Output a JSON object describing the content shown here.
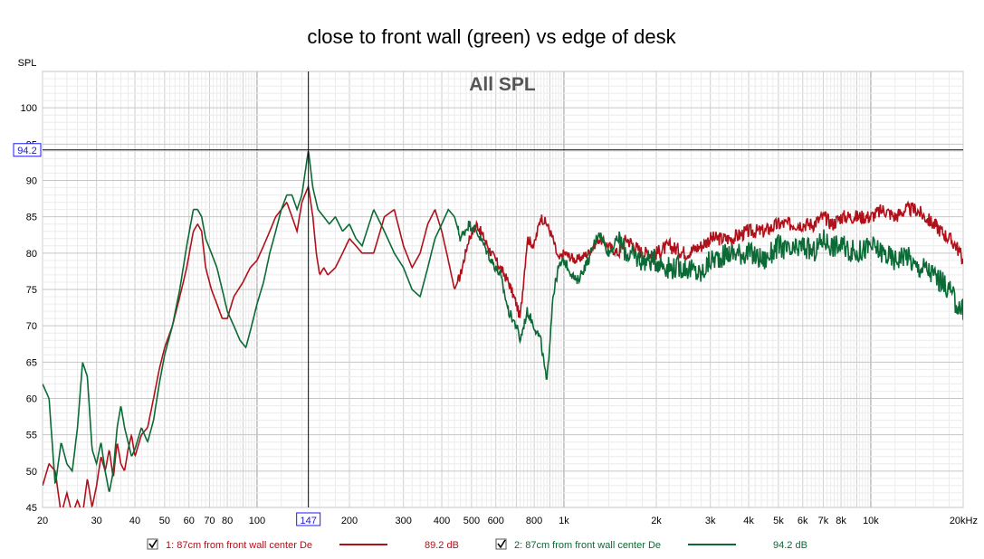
{
  "chart_data": {
    "type": "line",
    "title": "close to front wall (green) vs edge of desk",
    "inner_label": "All SPL",
    "ylabel": "SPL",
    "xscale": "log",
    "xlim": [
      20,
      20000
    ],
    "ylim": [
      45,
      105
    ],
    "grid": true,
    "xticks": [
      {
        "v": 20,
        "label": "20"
      },
      {
        "v": 30,
        "label": "30"
      },
      {
        "v": 40,
        "label": "40"
      },
      {
        "v": 50,
        "label": "50"
      },
      {
        "v": 60,
        "label": "60"
      },
      {
        "v": 70,
        "label": "70"
      },
      {
        "v": 80,
        "label": "80"
      },
      {
        "v": 100,
        "label": "100"
      },
      {
        "v": 200,
        "label": "200"
      },
      {
        "v": 300,
        "label": "300"
      },
      {
        "v": 400,
        "label": "400"
      },
      {
        "v": 500,
        "label": "500"
      },
      {
        "v": 600,
        "label": "600"
      },
      {
        "v": 800,
        "label": "800"
      },
      {
        "v": 1000,
        "label": "1k"
      },
      {
        "v": 2000,
        "label": "2k"
      },
      {
        "v": 3000,
        "label": "3k"
      },
      {
        "v": 4000,
        "label": "4k"
      },
      {
        "v": 5000,
        "label": "5k"
      },
      {
        "v": 6000,
        "label": "6k"
      },
      {
        "v": 7000,
        "label": "7k"
      },
      {
        "v": 8000,
        "label": "8k"
      },
      {
        "v": 10000,
        "label": "10k"
      },
      {
        "v": 20000,
        "label": "20kHz"
      }
    ],
    "yticks": [
      45,
      50,
      55,
      60,
      65,
      70,
      75,
      80,
      85,
      90,
      95,
      100
    ],
    "cursor": {
      "x": 147,
      "y": 94.2,
      "x_label": "147",
      "y_label": "94.2"
    },
    "series": [
      {
        "name": "1: 87cm from front wall center De",
        "color": "#b0101a",
        "value_label": "89.2 dB",
        "points": [
          [
            20,
            48
          ],
          [
            21,
            51
          ],
          [
            22,
            50
          ],
          [
            23,
            44
          ],
          [
            24,
            47
          ],
          [
            25,
            44
          ],
          [
            26,
            46
          ],
          [
            27,
            44
          ],
          [
            28,
            49
          ],
          [
            29,
            45
          ],
          [
            30,
            48
          ],
          [
            31,
            52
          ],
          [
            32,
            50
          ],
          [
            33,
            53
          ],
          [
            34,
            49
          ],
          [
            35,
            54
          ],
          [
            36,
            51
          ],
          [
            37,
            50
          ],
          [
            38,
            53
          ],
          [
            39,
            55
          ],
          [
            40,
            52
          ],
          [
            42,
            55
          ],
          [
            44,
            56
          ],
          [
            46,
            60
          ],
          [
            48,
            64
          ],
          [
            50,
            67
          ],
          [
            53,
            70
          ],
          [
            56,
            74
          ],
          [
            59,
            78
          ],
          [
            62,
            83
          ],
          [
            64,
            84
          ],
          [
            66,
            83
          ],
          [
            68,
            78
          ],
          [
            71,
            75
          ],
          [
            74,
            73
          ],
          [
            77,
            71
          ],
          [
            80,
            71
          ],
          [
            84,
            74
          ],
          [
            90,
            76
          ],
          [
            95,
            78
          ],
          [
            100,
            79
          ],
          [
            105,
            81
          ],
          [
            110,
            83
          ],
          [
            115,
            85
          ],
          [
            120,
            86
          ],
          [
            125,
            87
          ],
          [
            130,
            85
          ],
          [
            135,
            83
          ],
          [
            140,
            87
          ],
          [
            147,
            89.2
          ],
          [
            152,
            85
          ],
          [
            156,
            80
          ],
          [
            160,
            77
          ],
          [
            165,
            78
          ],
          [
            170,
            77
          ],
          [
            180,
            78
          ],
          [
            190,
            80
          ],
          [
            200,
            82
          ],
          [
            210,
            81
          ],
          [
            220,
            80
          ],
          [
            240,
            80
          ],
          [
            260,
            85
          ],
          [
            280,
            86
          ],
          [
            300,
            81
          ],
          [
            320,
            78
          ],
          [
            340,
            80
          ],
          [
            360,
            84
          ],
          [
            380,
            86
          ],
          [
            400,
            83
          ],
          [
            420,
            79
          ],
          [
            440,
            75
          ],
          [
            460,
            77
          ],
          [
            490,
            82
          ],
          [
            520,
            84
          ],
          [
            550,
            82
          ],
          [
            580,
            80
          ],
          [
            620,
            78
          ],
          [
            660,
            76
          ],
          [
            700,
            73
          ],
          [
            720,
            71
          ],
          [
            760,
            82
          ],
          [
            800,
            81
          ],
          [
            840,
            85
          ],
          [
            880,
            84
          ],
          [
            920,
            82
          ],
          [
            960,
            79
          ],
          [
            1000,
            80
          ],
          [
            1100,
            79
          ],
          [
            1200,
            80
          ],
          [
            1300,
            82
          ],
          [
            1400,
            81
          ],
          [
            1500,
            80
          ],
          [
            1600,
            82
          ],
          [
            1800,
            80
          ],
          [
            2000,
            80
          ],
          [
            2200,
            81
          ],
          [
            2500,
            80
          ],
          [
            2800,
            81
          ],
          [
            3000,
            82
          ],
          [
            3500,
            82
          ],
          [
            4000,
            83
          ],
          [
            4500,
            83
          ],
          [
            5000,
            84
          ],
          [
            5500,
            84
          ],
          [
            6000,
            84
          ],
          [
            6500,
            84
          ],
          [
            7000,
            85
          ],
          [
            7500,
            84
          ],
          [
            8000,
            85
          ],
          [
            9000,
            85
          ],
          [
            10000,
            85
          ],
          [
            11000,
            86
          ],
          [
            12000,
            85
          ],
          [
            13000,
            86
          ],
          [
            14000,
            86
          ],
          [
            15000,
            85
          ],
          [
            16000,
            84
          ],
          [
            17000,
            83
          ],
          [
            18000,
            82
          ],
          [
            19000,
            81
          ],
          [
            20000,
            79
          ]
        ]
      },
      {
        "name": "2: 87cm from front wall center De",
        "color": "#0b6a35",
        "value_label": "94.2 dB",
        "points": [
          [
            20,
            62
          ],
          [
            21,
            60
          ],
          [
            22,
            48
          ],
          [
            23,
            54
          ],
          [
            24,
            51
          ],
          [
            25,
            50
          ],
          [
            26,
            56
          ],
          [
            27,
            65
          ],
          [
            28,
            63
          ],
          [
            29,
            53
          ],
          [
            30,
            51
          ],
          [
            31,
            54
          ],
          [
            32,
            50
          ],
          [
            33,
            47
          ],
          [
            34,
            50
          ],
          [
            35,
            56
          ],
          [
            36,
            59
          ],
          [
            37,
            56
          ],
          [
            38,
            54
          ],
          [
            39,
            52
          ],
          [
            40,
            53
          ],
          [
            42,
            56
          ],
          [
            44,
            54
          ],
          [
            46,
            57
          ],
          [
            48,
            62
          ],
          [
            50,
            66
          ],
          [
            53,
            70
          ],
          [
            56,
            75
          ],
          [
            59,
            81
          ],
          [
            62,
            86
          ],
          [
            64,
            86
          ],
          [
            66,
            85
          ],
          [
            68,
            82
          ],
          [
            71,
            80
          ],
          [
            74,
            78
          ],
          [
            77,
            75
          ],
          [
            80,
            72
          ],
          [
            84,
            70
          ],
          [
            88,
            68
          ],
          [
            92,
            67
          ],
          [
            96,
            70
          ],
          [
            100,
            73
          ],
          [
            105,
            76
          ],
          [
            110,
            80
          ],
          [
            115,
            83
          ],
          [
            120,
            86
          ],
          [
            125,
            88
          ],
          [
            130,
            88
          ],
          [
            135,
            86
          ],
          [
            140,
            88
          ],
          [
            147,
            94.2
          ],
          [
            152,
            89
          ],
          [
            158,
            86
          ],
          [
            165,
            85
          ],
          [
            172,
            84
          ],
          [
            180,
            85
          ],
          [
            190,
            83
          ],
          [
            200,
            84
          ],
          [
            210,
            82
          ],
          [
            220,
            81
          ],
          [
            240,
            86
          ],
          [
            260,
            83
          ],
          [
            280,
            80
          ],
          [
            300,
            78
          ],
          [
            320,
            75
          ],
          [
            340,
            74
          ],
          [
            360,
            78
          ],
          [
            380,
            82
          ],
          [
            400,
            84
          ],
          [
            420,
            86
          ],
          [
            440,
            85
          ],
          [
            460,
            82
          ],
          [
            490,
            84
          ],
          [
            520,
            83
          ],
          [
            550,
            81
          ],
          [
            580,
            79
          ],
          [
            620,
            77
          ],
          [
            660,
            72
          ],
          [
            700,
            70
          ],
          [
            720,
            68
          ],
          [
            760,
            72
          ],
          [
            800,
            70
          ],
          [
            840,
            68
          ],
          [
            880,
            62
          ],
          [
            920,
            74
          ],
          [
            960,
            78
          ],
          [
            1000,
            79
          ],
          [
            1100,
            76
          ],
          [
            1200,
            79
          ],
          [
            1300,
            83
          ],
          [
            1400,
            80
          ],
          [
            1500,
            82
          ],
          [
            1600,
            80
          ],
          [
            1800,
            79
          ],
          [
            2000,
            79
          ],
          [
            2200,
            78
          ],
          [
            2500,
            78
          ],
          [
            2800,
            77
          ],
          [
            3000,
            79
          ],
          [
            3500,
            80
          ],
          [
            4000,
            80
          ],
          [
            4500,
            79
          ],
          [
            5000,
            81
          ],
          [
            5500,
            80
          ],
          [
            6000,
            81
          ],
          [
            6500,
            80
          ],
          [
            7000,
            82
          ],
          [
            7500,
            81
          ],
          [
            8000,
            81
          ],
          [
            9000,
            80
          ],
          [
            10000,
            81
          ],
          [
            11000,
            80
          ],
          [
            12000,
            79
          ],
          [
            13000,
            80
          ],
          [
            14000,
            78
          ],
          [
            15000,
            78
          ],
          [
            16000,
            77
          ],
          [
            17000,
            76
          ],
          [
            18000,
            75
          ],
          [
            19000,
            73
          ],
          [
            20000,
            72
          ]
        ]
      }
    ]
  }
}
